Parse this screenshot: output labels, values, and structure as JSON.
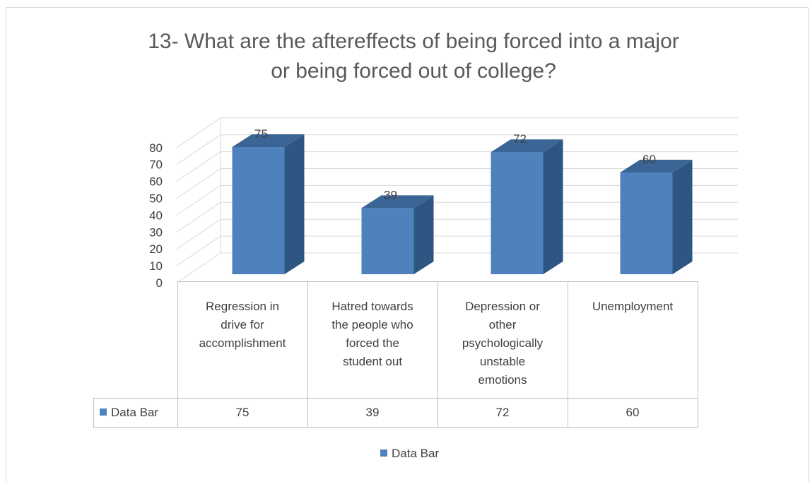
{
  "chart_data": {
    "type": "bar",
    "title_lines": [
      "13- What are the aftereffects of being forced into a major",
      "or being forced out of college?"
    ],
    "categories": [
      "Regression in drive for accomplishment",
      "Hatred towards the people who forced the student out",
      "Depression or other psychologically unstable emotions",
      "Unemployment"
    ],
    "category_lines": [
      [
        "Regression in",
        "drive for",
        "accomplishment"
      ],
      [
        "Hatred towards",
        "the people who",
        "forced the",
        "student out"
      ],
      [
        "Depression or",
        "other",
        "psychologically",
        "unstable",
        "emotions"
      ],
      [
        "Unemployment"
      ]
    ],
    "series": [
      {
        "name": "Data Bar",
        "values": [
          75,
          39,
          72,
          60
        ]
      }
    ],
    "yticks": [
      "0",
      "10",
      "20",
      "30",
      "40",
      "50",
      "60",
      "70",
      "80"
    ],
    "ylim": [
      0,
      80
    ],
    "grid": true,
    "legend": "bottom",
    "data_table": true,
    "colors": {
      "bar_front": "#4f81bd",
      "bar_side": "#2e5682",
      "bar_top": "#3a6595",
      "grid": "#d9d9d9"
    }
  }
}
